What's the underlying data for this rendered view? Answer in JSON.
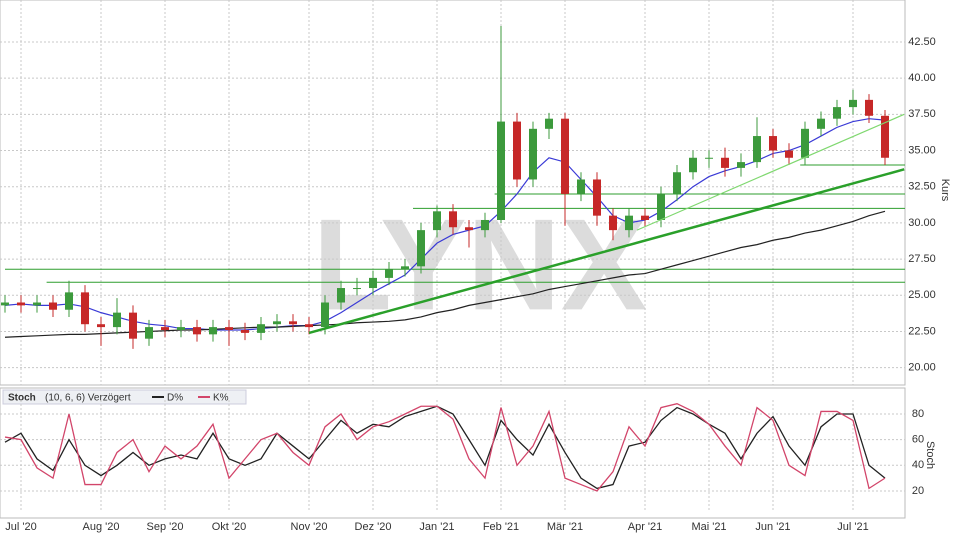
{
  "chart_data": [
    {
      "type": "candlestick",
      "watermark": "LYNX",
      "y_label": "Kurs",
      "categories": [
        null,
        "Jul '20",
        null,
        null,
        null,
        null,
        "Aug '20",
        null,
        null,
        null,
        "Sep '20",
        null,
        null,
        null,
        "Okt '20",
        null,
        null,
        null,
        null,
        "Nov '20",
        null,
        null,
        null,
        "Dez '20",
        null,
        null,
        null,
        "Jan '21",
        null,
        null,
        null,
        "Feb '21",
        null,
        null,
        null,
        "Mär '21",
        null,
        null,
        null,
        null,
        "Apr '21",
        null,
        null,
        null,
        "Mai '21",
        null,
        null,
        null,
        "Jun '21",
        null,
        null,
        null,
        null,
        "Jul '21",
        null,
        null
      ],
      "open": [
        24.3,
        24.5,
        24.3,
        24.5,
        24.0,
        25.2,
        23.0,
        22.8,
        23.8,
        22.0,
        22.8,
        22.6,
        22.8,
        22.3,
        22.8,
        22.6,
        22.4,
        23.0,
        23.2,
        23.0,
        22.8,
        24.5,
        25.5,
        25.5,
        26.2,
        26.8,
        27.0,
        29.5,
        30.8,
        29.7,
        29.5,
        30.2,
        37.0,
        33.0,
        36.5,
        37.2,
        32.0,
        33.0,
        30.5,
        29.5,
        30.5,
        30.2,
        32.0,
        33.5,
        34.5,
        34.5,
        33.8,
        34.2,
        36.0,
        35.0,
        34.5,
        36.5,
        37.2,
        38.0,
        38.5,
        37.4
      ],
      "high": [
        25.0,
        25.0,
        25.0,
        25.0,
        26.0,
        25.7,
        23.5,
        24.8,
        24.3,
        23.3,
        23.3,
        23.3,
        23.3,
        23.3,
        23.3,
        23.1,
        23.5,
        23.7,
        23.7,
        23.5,
        25.0,
        26.0,
        26.2,
        26.7,
        27.3,
        27.5,
        30.0,
        31.2,
        31.3,
        30.2,
        30.7,
        43.6,
        37.6,
        37.0,
        37.6,
        37.6,
        33.5,
        33.5,
        31.0,
        31.0,
        31.0,
        32.5,
        34.0,
        35.0,
        35.0,
        35.2,
        34.8,
        37.3,
        36.5,
        35.5,
        37.0,
        37.7,
        38.5,
        39.2,
        38.9,
        37.8
      ],
      "low": [
        23.8,
        23.8,
        23.8,
        23.5,
        23.5,
        22.5,
        21.5,
        22.3,
        21.3,
        21.5,
        22.1,
        22.1,
        21.8,
        21.8,
        21.5,
        21.9,
        21.9,
        22.5,
        22.5,
        22.3,
        22.3,
        24.0,
        25.0,
        25.0,
        25.7,
        26.3,
        26.5,
        29.0,
        29.2,
        28.3,
        29.0,
        30.0,
        32.5,
        32.5,
        35.8,
        29.8,
        31.5,
        29.8,
        28.8,
        29.0,
        29.7,
        29.7,
        31.5,
        33.0,
        33.8,
        33.2,
        33.2,
        33.8,
        34.5,
        34.0,
        34.0,
        36.0,
        36.7,
        37.5,
        36.9,
        34.0
      ],
      "close": [
        24.5,
        24.3,
        24.5,
        24.0,
        25.2,
        23.0,
        22.8,
        23.8,
        22.0,
        22.8,
        22.6,
        22.8,
        22.3,
        22.8,
        22.6,
        22.4,
        23.0,
        23.2,
        23.0,
        22.8,
        24.5,
        25.5,
        25.5,
        26.2,
        26.8,
        27.0,
        29.5,
        30.8,
        29.7,
        29.5,
        30.2,
        37.0,
        33.0,
        36.5,
        37.2,
        32.0,
        33.0,
        30.5,
        29.5,
        30.5,
        30.2,
        32.0,
        33.5,
        34.5,
        34.5,
        33.8,
        34.2,
        36.0,
        35.0,
        34.5,
        36.5,
        37.2,
        38.0,
        38.5,
        37.4,
        34.5
      ],
      "up_color": "#3c9a3c",
      "down_color": "#c62828",
      "series": [
        {
          "color": "#3a3ad6",
          "values": [
            24.3,
            24.4,
            24.3,
            24.3,
            24.4,
            24.2,
            23.8,
            23.5,
            23.2,
            23.0,
            22.9,
            22.7,
            22.7,
            22.6,
            22.6,
            22.6,
            22.7,
            22.8,
            22.9,
            22.9,
            23.2,
            23.8,
            24.5,
            25.2,
            25.8,
            26.4,
            27.5,
            28.6,
            29.2,
            29.5,
            29.8,
            30.8,
            32.0,
            33.5,
            34.5,
            34.2,
            33.0,
            31.8,
            30.5,
            30.0,
            30.2,
            30.8,
            31.6,
            32.5,
            33.2,
            33.6,
            33.9,
            34.3,
            34.8,
            35.0,
            35.4,
            36.0,
            36.6,
            37.0,
            37.2,
            37.1
          ]
        },
        {
          "color": "#222222",
          "values": [
            22.1,
            22.15,
            22.2,
            22.25,
            22.3,
            22.3,
            22.35,
            22.4,
            22.45,
            22.5,
            22.55,
            22.6,
            22.6,
            22.65,
            22.7,
            22.75,
            22.8,
            22.8,
            22.85,
            22.9,
            22.95,
            23.0,
            23.1,
            23.15,
            23.2,
            23.3,
            23.5,
            23.8,
            24.0,
            24.3,
            24.5,
            24.7,
            24.9,
            25.1,
            25.4,
            25.6,
            25.8,
            26.0,
            26.2,
            26.4,
            26.5,
            26.8,
            27.1,
            27.4,
            27.7,
            28.0,
            28.3,
            28.5,
            28.8,
            29.0,
            29.3,
            29.5,
            29.8,
            30.1,
            30.5,
            30.8
          ]
        }
      ],
      "levels": [
        {
          "value": 34.0,
          "from": 49.7
        },
        {
          "value": 32.0,
          "from": 30.6
        },
        {
          "value": 31.0,
          "from": 25.5
        },
        {
          "value": 26.8,
          "from": 0
        },
        {
          "value": 25.9,
          "from": 2.6
        }
      ],
      "level_color": "#2e9e2e",
      "trendlines": [
        {
          "x": [
            19,
            56.2
          ],
          "y": [
            22.4,
            33.7
          ],
          "color": "#2aa02a",
          "width": 2.5
        },
        {
          "x": [
            39.5,
            56.2
          ],
          "y": [
            29.5,
            37.5
          ],
          "color": "#7fd86f",
          "width": 1.2
        }
      ],
      "ylim": [
        18.8,
        45.4
      ],
      "yticks": [
        {
          "value": 20,
          "label": "20.00"
        },
        {
          "value": 22.5,
          "label": "22.50"
        },
        {
          "value": 25,
          "label": "25.00"
        },
        {
          "value": 27.5,
          "label": "27.50"
        },
        {
          "value": 30,
          "label": "30.00"
        },
        {
          "value": 32.5,
          "label": "32.50"
        },
        {
          "value": 35,
          "label": "35.00"
        },
        {
          "value": 37.5,
          "label": "37.50"
        },
        {
          "value": 40,
          "label": "40.00"
        },
        {
          "value": 42.5,
          "label": "42.50"
        }
      ],
      "grid": true
    },
    {
      "type": "line",
      "legend_title": "Stoch",
      "legend_params": "(10, 6, 6) Verzögert",
      "y_label": "Stoch",
      "series": [
        {
          "name": "D%",
          "color": "#222222",
          "values": [
            58,
            65,
            45,
            36,
            60,
            40,
            32,
            40,
            50,
            40,
            45,
            48,
            45,
            65,
            45,
            40,
            45,
            65,
            55,
            45,
            60,
            75,
            65,
            72,
            70,
            78,
            82,
            86,
            80,
            60,
            40,
            75,
            60,
            48,
            72,
            50,
            30,
            22,
            25,
            55,
            58,
            75,
            85,
            80,
            72,
            65,
            45,
            65,
            78,
            55,
            40,
            70,
            80,
            80,
            40,
            30
          ]
        },
        {
          "name": "K%",
          "color": "#d2456a",
          "values": [
            62,
            60,
            38,
            30,
            80,
            25,
            25,
            50,
            60,
            35,
            55,
            45,
            55,
            72,
            30,
            45,
            60,
            65,
            50,
            40,
            70,
            80,
            60,
            70,
            74,
            80,
            86,
            86,
            76,
            45,
            30,
            85,
            40,
            55,
            82,
            30,
            25,
            20,
            35,
            70,
            55,
            85,
            88,
            82,
            72,
            55,
            40,
            85,
            75,
            40,
            32,
            82,
            82,
            75,
            22,
            30
          ]
        }
      ],
      "ylim": [
        3.6,
        90.9
      ],
      "yticks": [
        20,
        40,
        60,
        80
      ],
      "grid": true
    }
  ]
}
